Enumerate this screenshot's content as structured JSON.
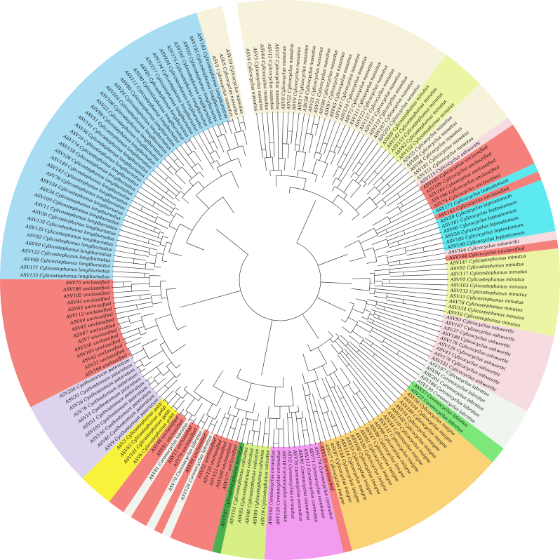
{
  "clade_colors": {
    "nassatum": "#f7f2dc",
    "minutum": "#ebf5a3",
    "unclassified": "#f5817c",
    "leptostomum": "#5ce9ef",
    "ashworthi": "#f6dbe0",
    "labratus": "#f0f5ef",
    "labiatus": "#7ee77a",
    "insigne": "#fbd377",
    "coronatus": "#f39bf0",
    "calicatus": "#d7ef85",
    "serratus": "#4caf50",
    "pateratum": "#ddd3ee",
    "goldi": "#f8f23a",
    "longibursatus": "#a8dcf2",
    "none": "#ffffff"
  },
  "leaves": [
    {
      "label": "ASV4 Cylicocyclus nassatus",
      "clade": "nassatum"
    },
    {
      "label": "ASV3 Cylicocyclus nassatus",
      "clade": "nassatum"
    },
    {
      "label": "ASV64 Cylicocyclus nassatus",
      "clade": "nassatum"
    },
    {
      "label": "ASV12 Cylicocyclus nassatus",
      "clade": "nassatum"
    },
    {
      "label": "ASV37 Cylicocyclus nassatus",
      "clade": "nassatum"
    },
    {
      "label": "ASV8 Cylicocyclus nassatus",
      "clade": "nassatum"
    },
    {
      "label": "ASV22 Cylicocyclus nassatus",
      "clade": "nassatum"
    },
    {
      "label": "ASV9 Cylicocyclus nassatus",
      "clade": "nassatum"
    },
    {
      "label": "ASV17 Cylicocyclus nassatus",
      "clade": "nassatum"
    },
    {
      "label": "ASV28 Cylicocyclus nassatus",
      "clade": "nassatum"
    },
    {
      "label": "ASV21 Cylicocyclus nassatus",
      "clade": "nassatum"
    },
    {
      "label": "ASV31 Cylicocyclus nassatus",
      "clade": "nassatum"
    },
    {
      "label": "ASV86 Cylicocyclus nassatus",
      "clade": "nassatum"
    },
    {
      "label": "ASV97 Cylicocyclus nassatus",
      "clade": "nassatum"
    },
    {
      "label": "ASV65 Cylicocyclus nassatus",
      "clade": "nassatum"
    },
    {
      "label": "ASV147 Cylicocyclus nassatus",
      "clade": "nassatum"
    },
    {
      "label": "ASV134 Cylicocyclus nassatus",
      "clade": "nassatum"
    },
    {
      "label": "ASV72 Cylicocyclus nassatus",
      "clade": "nassatum"
    },
    {
      "label": "ASV111 Cylicocyclus nassatus",
      "clade": "nassatum"
    },
    {
      "label": "ASV123 Cylicocyclus nassatus",
      "clade": "nassatum"
    },
    {
      "label": "ASV127 Cylicocyclus nassatus",
      "clade": "nassatum"
    },
    {
      "label": "ASV137 Cylicocyclus nassatus",
      "clade": "nassatum"
    },
    {
      "label": "ASV119 Cylicocyclus nassatus",
      "clade": "nassatum"
    },
    {
      "label": "ASV107 Cylicocyclus nassatus",
      "clade": "nassatum"
    },
    {
      "label": "ASV202 Cylicocyclus nassatus",
      "clade": "nassatum"
    },
    {
      "label": "ASV60 Cylicostephanus minutus",
      "clade": "minutum"
    },
    {
      "label": "ASV142 Cylicostephanus minutus",
      "clade": "minutum"
    },
    {
      "label": "ASV153 Cylicostephanus minutus",
      "clade": "minutum"
    },
    {
      "label": "ASV62 Cylicostephanus minutus",
      "clade": "minutum"
    },
    {
      "label": "ASV152 Cylicostephanus minutus",
      "clade": "minutum"
    },
    {
      "label": "ASV55 Cylicocyclus nassatus",
      "clade": "nassatum"
    },
    {
      "label": "ASV88 Cylicocyclus nassatus",
      "clade": "nassatum"
    },
    {
      "label": "ASV94 Cylicocyclus nassatus",
      "clade": "nassatum"
    },
    {
      "label": "ASV181 Cylicocyclus nassatus",
      "clade": "nassatum"
    },
    {
      "label": "ASV151 Cylicocyclus nassatus",
      "clade": "nassatum"
    },
    {
      "label": "ASV115 Cylicocyclus ashworthi",
      "clade": "ashworthi"
    },
    {
      "label": "ASV185 Cylicocyclus unclassified",
      "clade": "unclassified"
    },
    {
      "label": "ASV189 Cylicocyclus unclassified",
      "clade": "unclassified"
    },
    {
      "label": "ASV184 Cylicocyclus unclassified",
      "clade": "unclassified"
    },
    {
      "label": "ASV196 Cylicocyclus unclassified",
      "clade": "unclassified"
    },
    {
      "label": "ASV74 Cylicocyclus unclassified",
      "clade": "unclassified"
    },
    {
      "label": "ASV172 Cylicocyclus leptostomum",
      "clade": "leptostomum"
    },
    {
      "label": "ASV143 Cylicocyclus unclassified",
      "clade": "unclassified"
    },
    {
      "label": "ASV29 Cylicocyclus leptostomum",
      "clade": "leptostomum"
    },
    {
      "label": "ASV161 Cylicocyclus leptostomum",
      "clade": "leptostomum"
    },
    {
      "label": "ASV66 Cylicocyclus leptostomum",
      "clade": "leptostomum"
    },
    {
      "label": "ASV58 Cylicocyclus leptostomum",
      "clade": "leptostomum"
    },
    {
      "label": "ASV105 Cylicocyclus leptostomum",
      "clade": "leptostomum"
    },
    {
      "label": "ASV198 Cylicocyclus leptostomum",
      "clade": "leptostomum"
    },
    {
      "label": "ASV166 Cylicocyclus ashworthi",
      "clade": "ashworthi"
    },
    {
      "label": "ASV144 Cylicocyclus unclassified",
      "clade": "unclassified"
    },
    {
      "label": "ASV147 Cylicostephanus minutus",
      "clade": "minutum"
    },
    {
      "label": "ASV92 Cylicostephanus minutus",
      "clade": "minutum"
    },
    {
      "label": "ASV117 Cylicostephanus minutus",
      "clade": "minutum"
    },
    {
      "label": "ASV95 Cylicostephanus minutus",
      "clade": "minutum"
    },
    {
      "label": "ASV103 Cylicostephanus minutus",
      "clade": "minutum"
    },
    {
      "label": "ASV132 Cylicostephanus minutus",
      "clade": "minutum"
    },
    {
      "label": "ASV33 Cylicostephanus minutus",
      "clade": "minutum"
    },
    {
      "label": "ASV76 Cylicostephanus minutus",
      "clade": "minutum"
    },
    {
      "label": "ASV154 Cylicostephanus minutus",
      "clade": "minutum"
    },
    {
      "label": "ASV16 Cylicostephanus minutus",
      "clade": "minutum"
    },
    {
      "label": "ASV93 Cylicocyclus ashworthi",
      "clade": "ashworthi"
    },
    {
      "label": "ASV167 Cylicocyclus ashworthi",
      "clade": "ashworthi"
    },
    {
      "label": "ASV37 Cylicocyclus ashworthi",
      "clade": "ashworthi"
    },
    {
      "label": "ASV189 Cylicocyclus ashworthi",
      "clade": "ashworthi"
    },
    {
      "label": "ASV178 Cylicocyclus ashworthi",
      "clade": "ashworthi"
    },
    {
      "label": "ASV126 Cylicocyclus ashworthi",
      "clade": "ashworthi"
    },
    {
      "label": "ASV43 Cylicocyclus ashworthi",
      "clade": "ashworthi"
    },
    {
      "label": "ASV178 Cylicocyclus ashworthi",
      "clade": "ashworthi"
    },
    {
      "label": "ASV151 Cylicocyclus ashworthi",
      "clade": "ashworthi"
    },
    {
      "label": "ASV197 Cylicocyclus labratus",
      "clade": "labratus"
    },
    {
      "label": "ASV94 Coronocyclus labratus",
      "clade": "labratus"
    },
    {
      "label": "ASV201 Coronocyclus labratus",
      "clade": "labratus"
    },
    {
      "label": "ASV188 Coronocyclus labratus",
      "clade": "labratus"
    },
    {
      "label": "ASV130 Coronocyclus labratus",
      "clade": "labratus"
    },
    {
      "label": "ASV57 Coronocyclus labiatus",
      "clade": "labiatus"
    },
    {
      "label": "ASV23 Coronocyclus labiatus",
      "clade": "labiatus"
    },
    {
      "label": "ASV56 Cylicocyclus insigne",
      "clade": "insigne"
    },
    {
      "label": "ASV104 Cylicocyclus insigne",
      "clade": "insigne"
    },
    {
      "label": "ASV160 Cylicocyclus insigne",
      "clade": "insigne"
    },
    {
      "label": "ASV14 Cylicocyclus insigne",
      "clade": "insigne"
    },
    {
      "label": "ASV102 Cylicocyclus insigne",
      "clade": "insigne"
    },
    {
      "label": "ASV119 Cylicocyclus insigne",
      "clade": "insigne"
    },
    {
      "label": "ASV44 Cylicocyclus insigne",
      "clade": "insigne"
    },
    {
      "label": "ASV131 Cylicocyclus insigne",
      "clade": "insigne"
    },
    {
      "label": "ASV98 Cylicocyclus insigne",
      "clade": "insigne"
    },
    {
      "label": "ASV86 Cylicocyclus insigne",
      "clade": "insigne"
    },
    {
      "label": "ASV47 Cylicocyclus insigne",
      "clade": "insigne"
    },
    {
      "label": "ASV61 Cylicocyclus insigne",
      "clade": "insigne"
    },
    {
      "label": "ASV180 Cylicocyclus insigne",
      "clade": "insigne"
    },
    {
      "label": "ASV168 Cylicocyclus insigne",
      "clade": "insigne"
    },
    {
      "label": "ASV53 Cylicocyclus insigne",
      "clade": "insigne"
    },
    {
      "label": "ASV114 Cylicocyclus insigne",
      "clade": "insigne"
    },
    {
      "label": "ASV144 Cylicocyclus insigne",
      "clade": "insigne"
    },
    {
      "label": "ASV87 Cylicocyclus insigne",
      "clade": "insigne"
    },
    {
      "label": "ASV27 Cylicocyclus insigne",
      "clade": "insigne"
    },
    {
      "label": "ASV133 unclassified",
      "clade": "unclassified"
    },
    {
      "label": "ASV170 Coronocyclus coronatus",
      "clade": "coronatus"
    },
    {
      "label": "ASV71 Coronocyclus coronatus",
      "clade": "coronatus"
    },
    {
      "label": "ASV112 Coronocyclus coronatus",
      "clade": "coronatus"
    },
    {
      "label": "ASV91 Coronocyclus coronatus",
      "clade": "coronatus"
    },
    {
      "label": "ASV78 Coronocyclus coronatus",
      "clade": "coronatus"
    },
    {
      "label": "ASV2 Coronocyclus coronatus",
      "clade": "coronatus"
    },
    {
      "label": "ASV18 Coronocyclus coronatus",
      "clade": "coronatus"
    },
    {
      "label": "ASV125 Coronocyclus coronatus",
      "clade": "coronatus"
    },
    {
      "label": "ASV182 Coronocyclus coronatus",
      "clade": "coronatus"
    },
    {
      "label": "ASV19 Cylicostephanus calicatus",
      "clade": "calicatus"
    },
    {
      "label": "ASV89 Cylicostephanus calicatus",
      "clade": "calicatus"
    },
    {
      "label": "ASV46 Cylicostephanus calicatus",
      "clade": "calicatus"
    },
    {
      "label": "ASV85 Cylicostephanus calicatus",
      "clade": "calicatus"
    },
    {
      "label": "ASV191 Cylicostephanus calicatus",
      "clade": "calicatus"
    },
    {
      "label": "ASV187 Cylicodontophorus serratus",
      "clade": "serratus"
    },
    {
      "label": "ASV177 unclassified",
      "clade": "unclassified"
    },
    {
      "label": "ASV199 unclassified",
      "clade": "unclassified"
    },
    {
      "label": "ASV151 unclassified",
      "clade": "unclassified"
    },
    {
      "label": "ASV120 unclassified",
      "clade": "unclassified"
    },
    {
      "label": "ASV52 unclassified",
      "clade": "unclassified"
    },
    {
      "label": "ASV126 Coronocyclus labratus",
      "clade": "labratus"
    },
    {
      "label": "ASV99 unclassified",
      "clade": "unclassified"
    },
    {
      "label": "ASV70 Coronocyclus labratus",
      "clade": "labratus"
    },
    {
      "label": "ASV79 unclassified",
      "clade": "unclassified"
    },
    {
      "label": "ASV13 unclassified",
      "clade": "unclassified"
    },
    {
      "label": "ASV81 Coronocyclus labratus",
      "clade": "labratus"
    },
    {
      "label": "ASV81 unclassified",
      "clade": "unclassified"
    },
    {
      "label": "ASV48 unclassified",
      "clade": "unclassified"
    },
    {
      "label": "ASV6 Cylicostephanus goldi",
      "clade": "goldi"
    },
    {
      "label": "ASV101 Cylicostephanus goldi",
      "clade": "goldi"
    },
    {
      "label": "ASV83 Cylicostephanus goldi",
      "clade": "goldi"
    },
    {
      "label": "ASV3 Cylicostephanus goldi",
      "clade": "goldi"
    },
    {
      "label": "ASV9 Cyathostomum pateratum",
      "clade": "pateratum"
    },
    {
      "label": "ASV46 Cyathostomum pateratum",
      "clade": "pateratum"
    },
    {
      "label": "ASV156 Cyathostomum pateratum",
      "clade": "pateratum"
    },
    {
      "label": "ASV100 Cyathostomum pateratum",
      "clade": "pateratum"
    },
    {
      "label": "ASV51 Cyathostomum pateratum",
      "clade": "pateratum"
    },
    {
      "label": "ASV14 Cyathostomum pateratum",
      "clade": "pateratum"
    },
    {
      "label": "ASV76 Cyathostomum pateratum",
      "clade": "pateratum"
    },
    {
      "label": "ASV26 Cyathostomum pateratum",
      "clade": "pateratum"
    },
    {
      "label": "ASV25 Cyathostomum pateratum",
      "clade": "pateratum"
    },
    {
      "label": "ASV200 Cyathostomum pateratum",
      "clade": "pateratum"
    },
    {
      "label": "ASV190 unclassified",
      "clade": "unclassified"
    },
    {
      "label": "ASV32 unclassified",
      "clade": "unclassified"
    },
    {
      "label": "ASV42 unclassified",
      "clade": "unclassified"
    },
    {
      "label": "ASV183 unclassified",
      "clade": "unclassified"
    },
    {
      "label": "ASV150 unclassified",
      "clade": "unclassified"
    },
    {
      "label": "ASV7 unclassified",
      "clade": "unclassified"
    },
    {
      "label": "ASV67 unclassified",
      "clade": "unclassified"
    },
    {
      "label": "ASV45 unclassified",
      "clade": "unclassified"
    },
    {
      "label": "ASV49 unclassified",
      "clade": "unclassified"
    },
    {
      "label": "ASV112 unclassified",
      "clade": "unclassified"
    },
    {
      "label": "ASV63 unclassified",
      "clade": "unclassified"
    },
    {
      "label": "ASV41 unclassified",
      "clade": "unclassified"
    },
    {
      "label": "ASV105 unclassified",
      "clade": "unclassified"
    },
    {
      "label": "ASV186 unclassified",
      "clade": "unclassified"
    },
    {
      "label": "ASV75 unclassified",
      "clade": "unclassified"
    },
    {
      "label": "ASV135 Cylicostephanus longibursatus",
      "clade": "longibursatus"
    },
    {
      "label": "ASV171 Cylicostephanus longibursatus",
      "clade": "longibursatus"
    },
    {
      "label": "ASV68 Cylicostephanus longibursatus",
      "clade": "longibursatus"
    },
    {
      "label": "ASV122 Cylicostephanus longibursatus",
      "clade": "longibursatus"
    },
    {
      "label": "ASV40 Cylicostephanus longibursatus",
      "clade": "longibursatus"
    },
    {
      "label": "ASV82 Cylicostephanus longibursatus",
      "clade": "longibursatus"
    },
    {
      "label": "ASV139 Cylicostephanus longibursatus",
      "clade": "longibursatus"
    },
    {
      "label": "ASV135 Cylicostephanus longibursatus",
      "clade": "longibursatus"
    },
    {
      "label": "ASV30 Cylicostephanus longibursatus",
      "clade": "longibursatus"
    },
    {
      "label": "ASV11 Cylicostephanus longibursatus",
      "clade": "longibursatus"
    },
    {
      "label": "ASV109 Cylicostephanus longibursatus",
      "clade": "longibursatus"
    },
    {
      "label": "ASV34 Cylicostephanus longibursatus",
      "clade": "longibursatus"
    },
    {
      "label": "ASV154 Cylicostephanus longibursatus",
      "clade": "longibursatus"
    },
    {
      "label": "ASV78 Cylicostephanus longibursatus",
      "clade": "longibursatus"
    },
    {
      "label": "ASV142 Cylicostephanus longibursatus",
      "clade": "longibursatus"
    },
    {
      "label": "ASV149 Cylicostephanus longibursatus",
      "clade": "longibursatus"
    },
    {
      "label": "ASV126 Cylicostephanus longibursatus",
      "clade": "longibursatus"
    },
    {
      "label": "ASV158 Cylicostephanus longibursatus",
      "clade": "longibursatus"
    },
    {
      "label": "ASV174 Cylicostephanus longibursatus",
      "clade": "longibursatus"
    },
    {
      "label": "ASV29 Cylicostephanus longibursatus",
      "clade": "longibursatus"
    },
    {
      "label": "ASV36 Cylicostephanus longibursatus",
      "clade": "longibursatus"
    },
    {
      "label": "ASV141 Cylicostephanus longibursatus",
      "clade": "longibursatus"
    },
    {
      "label": "ASV51 Cylicostephanus longibursatus",
      "clade": "longibursatus"
    },
    {
      "label": "ASV99 Cylicostephanus longibursatus",
      "clade": "longibursatus"
    },
    {
      "label": "ASV22 Cylicostephanus longibursatus",
      "clade": "longibursatus"
    },
    {
      "label": "ASV108 Cylicostephanus longibursatus",
      "clade": "longibursatus"
    },
    {
      "label": "ASV164 Cylicostephanus longibursatus",
      "clade": "longibursatus"
    },
    {
      "label": "ASV24 Cylicostephanus longibursatus",
      "clade": "longibursatus"
    },
    {
      "label": "ASV80 Cylicostephanus longibursatus",
      "clade": "longibursatus"
    },
    {
      "label": "ASV111 Cylicostephanus longibursatus",
      "clade": "longibursatus"
    },
    {
      "label": "ASV90 Cylicostephanus longibursatus",
      "clade": "longibursatus"
    },
    {
      "label": "ASV85 Cylicostephanus longibursatus",
      "clade": "longibursatus"
    },
    {
      "label": "ASV157 Cylicostephanus longibursatus",
      "clade": "longibursatus"
    },
    {
      "label": "ASV134 Cylicostephanus longibursatus",
      "clade": "longibursatus"
    },
    {
      "label": "ASV194 Cylicostephanus longibursatus",
      "clade": "longibursatus"
    },
    {
      "label": "ASV175 Cylicostephanus longibursatus",
      "clade": "longibursatus"
    },
    {
      "label": "ASV165 Cylicostephanus longibursatus",
      "clade": "longibursatus"
    },
    {
      "label": "ASV20 Cylicostephanus longibursatus",
      "clade": "longibursatus"
    },
    {
      "label": "ASV185 Cylicostephanus longibursatus",
      "clade": "longibursatus"
    },
    {
      "label": "ASV183 Cylicostephanus longibursatus",
      "clade": "longibursatus"
    },
    {
      "label": "ASV1 Cylicocyclus nassatus",
      "clade": "nassatum"
    },
    {
      "label": "ASV5 Cylicocyclus nassatus",
      "clade": "nassatum"
    },
    {
      "label": "ASV10 Cylicocyclus nassatus",
      "clade": "nassatum"
    }
  ]
}
